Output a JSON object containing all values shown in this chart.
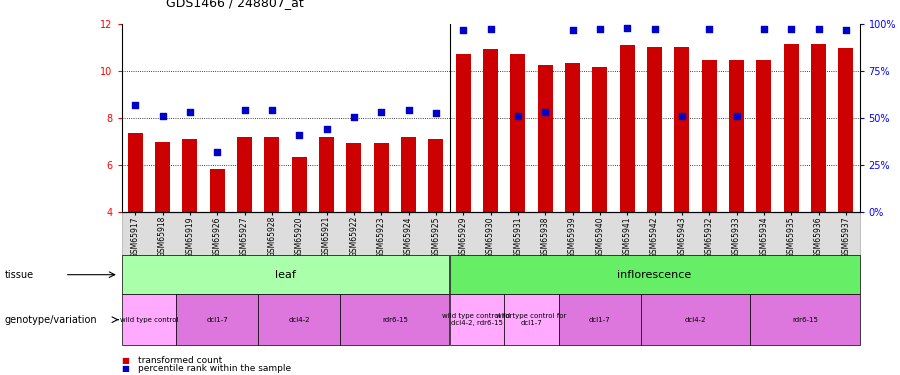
{
  "title": "GDS1466 / 248807_at",
  "samples": [
    "GSM65917",
    "GSM65918",
    "GSM65919",
    "GSM65926",
    "GSM65927",
    "GSM65928",
    "GSM65920",
    "GSM65921",
    "GSM65922",
    "GSM65923",
    "GSM65924",
    "GSM65925",
    "GSM65929",
    "GSM65930",
    "GSM65931",
    "GSM65938",
    "GSM65939",
    "GSM65940",
    "GSM65941",
    "GSM65942",
    "GSM65943",
    "GSM65932",
    "GSM65933",
    "GSM65934",
    "GSM65935",
    "GSM65936",
    "GSM65937"
  ],
  "bar_values": [
    7.35,
    7.0,
    7.1,
    5.85,
    7.2,
    7.2,
    6.35,
    7.2,
    6.95,
    6.95,
    7.2,
    7.1,
    10.75,
    10.95,
    10.75,
    10.25,
    10.35,
    10.2,
    11.1,
    11.05,
    11.05,
    10.5,
    10.5,
    10.5,
    11.15,
    11.15,
    11.0
  ],
  "percentile_values": [
    8.55,
    8.1,
    8.25,
    6.55,
    8.35,
    8.35,
    7.3,
    7.55,
    8.05,
    8.25,
    8.35,
    8.2,
    11.75,
    11.8,
    8.1,
    8.25,
    11.75,
    11.8,
    11.85,
    11.8,
    8.1,
    11.8,
    8.1,
    11.8,
    11.8,
    11.8,
    11.75
  ],
  "ylim": [
    4,
    12
  ],
  "yticks_left": [
    4,
    6,
    8,
    10,
    12
  ],
  "yticks_right_pct": [
    0,
    25,
    50,
    75,
    100
  ],
  "bar_color": "#cc0000",
  "dot_color": "#0000cc",
  "tissue_groups": [
    {
      "label": "leaf",
      "start": 0,
      "end": 11,
      "color": "#aaffaa"
    },
    {
      "label": "inflorescence",
      "start": 12,
      "end": 26,
      "color": "#66ee66"
    }
  ],
  "genotype_groups": [
    {
      "label": "wild type control",
      "start": 0,
      "end": 1,
      "color": "#ffaaff"
    },
    {
      "label": "dcl1-7",
      "start": 2,
      "end": 4,
      "color": "#dd77dd"
    },
    {
      "label": "dcl4-2",
      "start": 5,
      "end": 7,
      "color": "#dd77dd"
    },
    {
      "label": "rdr6-15",
      "start": 8,
      "end": 11,
      "color": "#dd77dd"
    },
    {
      "label": "wild type control for\ndcl4-2, rdr6-15",
      "start": 12,
      "end": 13,
      "color": "#ffaaff"
    },
    {
      "label": "wild type control for\ndcl1-7",
      "start": 14,
      "end": 15,
      "color": "#ffaaff"
    },
    {
      "label": "dcl1-7",
      "start": 16,
      "end": 18,
      "color": "#dd77dd"
    },
    {
      "label": "dcl4-2",
      "start": 19,
      "end": 22,
      "color": "#dd77dd"
    },
    {
      "label": "rdr6-15",
      "start": 23,
      "end": 26,
      "color": "#dd77dd"
    }
  ]
}
